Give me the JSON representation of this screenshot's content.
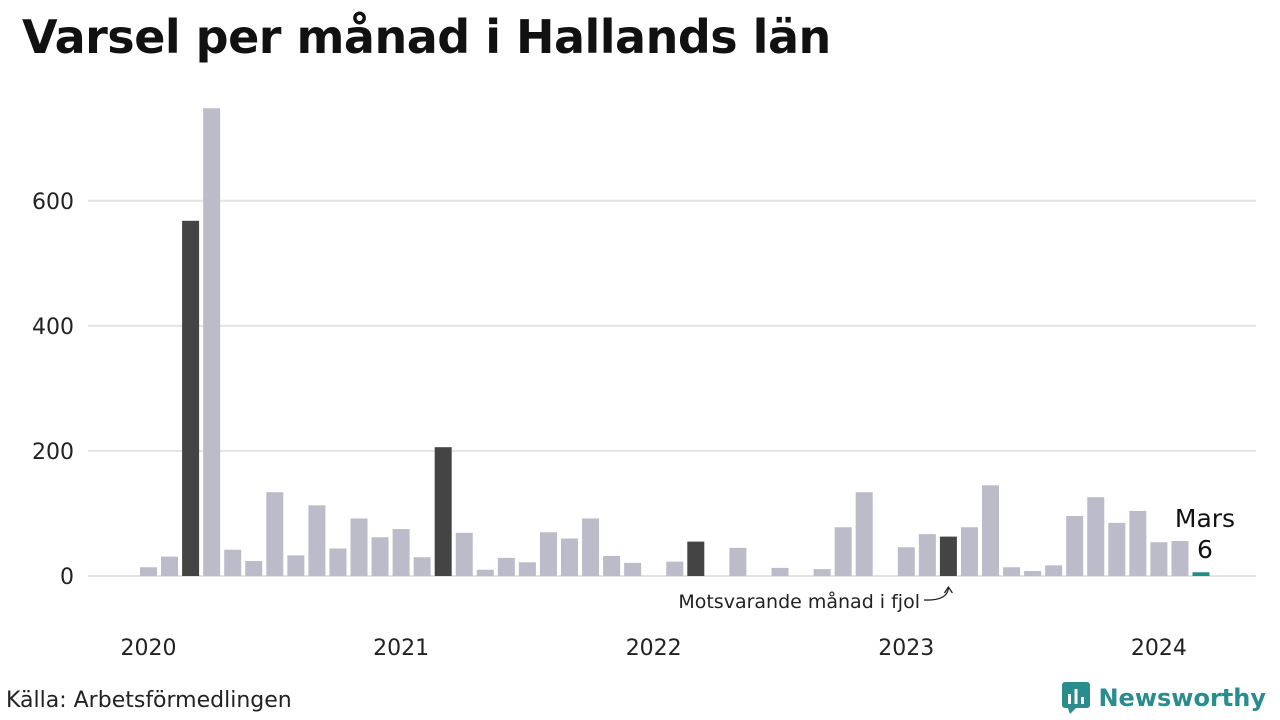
{
  "title": "Varsel per månad i Hallands län",
  "source": "Källa: Arbetsförmedlingen",
  "brand": "Newsworthy",
  "annotation": "Motsvarande månad i fjol",
  "colors": {
    "bar": "#bcbbc9",
    "highlight": "#444444",
    "current": "#1f8f86",
    "grid": "#e3e3e3",
    "brand": "#2a8c8c"
  },
  "chart_data": {
    "type": "bar",
    "title": "Varsel per månad i Hallands län",
    "start": "2020-01",
    "ylim": [
      0,
      750
    ],
    "yticks": [
      0,
      200,
      400,
      600
    ],
    "xticks": [
      "2020",
      "2021",
      "2022",
      "2023",
      "2024"
    ],
    "values": [
      14,
      31,
      568,
      748,
      42,
      24,
      134,
      33,
      113,
      44,
      92,
      62,
      75,
      30,
      206,
      69,
      10,
      29,
      22,
      70,
      60,
      92,
      32,
      21,
      0,
      23,
      55,
      0,
      45,
      0,
      13,
      0,
      11,
      78,
      134,
      0,
      46,
      67,
      63,
      78,
      145,
      14,
      8,
      17,
      96,
      126,
      85,
      104,
      54,
      56,
      6
    ],
    "highlight_months": [
      "2020-03",
      "2021-03",
      "2022-03",
      "2023-03"
    ],
    "current": {
      "month": "Mars",
      "value": "6"
    },
    "grid": true
  }
}
